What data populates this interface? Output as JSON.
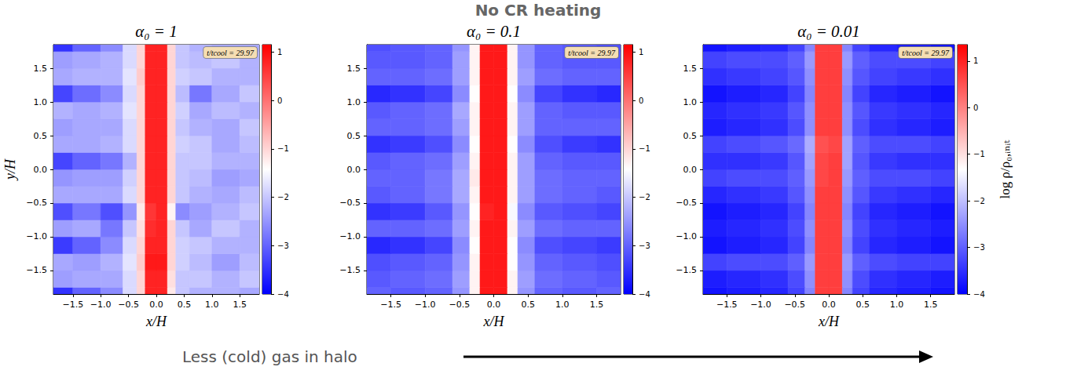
{
  "title": "No CR heating",
  "caption": "Less (cold) gas in halo",
  "chart_data": [
    {
      "type": "heatmap",
      "title": "α₀ = 1",
      "xlabel": "x/H",
      "ylabel": "y/H",
      "annotations": [
        "t/tcool = 29.97"
      ],
      "xlim": [
        -1.85,
        1.85
      ],
      "ylim": [
        -1.85,
        1.85
      ],
      "xticks": [
        {
          "value": -1.5,
          "label": "−1.5"
        },
        {
          "value": -1.0,
          "label": "−1.0"
        },
        {
          "value": -0.5,
          "label": "−0.5"
        },
        {
          "value": 0,
          "label": "0.0"
        },
        0.5,
        {
          "value": 1,
          "label": "1.0"
        },
        1.5
      ],
      "yticks": [
        {
          "value": -1.5,
          "label": "−1.5"
        },
        {
          "value": -1.0,
          "label": "−1.0"
        },
        {
          "value": -0.5,
          "label": "−0.5"
        },
        {
          "value": 0,
          "label": "0.0"
        },
        0.5,
        {
          "value": 1,
          "label": "1.0"
        },
        1.5
      ],
      "colors": [
        "#0000ff",
        "#ffffff",
        "#ff0000"
      ],
      "colorbar": {
        "lim": [
          -4,
          1.15
        ],
        "ticks": [
          {
            "value": -4,
            "label": "−4"
          },
          {
            "value": -3,
            "label": "−3"
          },
          {
            "value": -2,
            "label": "−2"
          },
          {
            "value": -1,
            "label": "−1"
          },
          0,
          1
        ]
      },
      "x_edges": [
        -2,
        -1.5,
        -1.0,
        -0.6,
        -0.35,
        -0.2,
        0,
        0.2,
        0.35,
        0.6,
        1.0,
        1.5,
        2
      ],
      "y_edges": [
        -2,
        -1.75,
        -1.5,
        -1.25,
        -1,
        -0.75,
        -0.5,
        -0.25,
        0,
        0.25,
        0.5,
        0.75,
        1,
        1.25,
        1.5,
        1.75,
        2
      ],
      "z": [
        [
          -3.5,
          -3.0,
          -2.6,
          -1.8,
          -1.0,
          0.8,
          0.8,
          -1.2,
          -2.0,
          -2.2,
          -2.2,
          -2.3
        ],
        [
          -2.4,
          -2.3,
          -2.3,
          -1.8,
          -1.0,
          0.8,
          0.8,
          -1.1,
          -2.0,
          -2.0,
          -2.2,
          -2.0
        ],
        [
          -2.3,
          -2.4,
          -2.2,
          -1.7,
          -0.9,
          0.9,
          0.9,
          -1.0,
          -1.9,
          -2.1,
          -2.4,
          -2.1
        ],
        [
          -3.4,
          -3.0,
          -2.6,
          -1.8,
          -1.0,
          0.8,
          0.8,
          -1.0,
          -1.9,
          -2.0,
          -2.2,
          -2.2
        ],
        [
          -2.4,
          -2.3,
          -2.8,
          -2.0,
          -1.1,
          0.7,
          0.8,
          -1.0,
          -2.0,
          -2.3,
          -2.0,
          -2.2
        ],
        [
          -3.2,
          -2.8,
          -3.2,
          -2.5,
          -1.2,
          0.6,
          0.8,
          -1.3,
          -2.6,
          -2.4,
          -2.2,
          -2.0
        ],
        [
          -2.3,
          -2.3,
          -2.3,
          -1.8,
          -1.0,
          0.8,
          0.8,
          -1.0,
          -2.0,
          -2.2,
          -2.3,
          -2.1
        ],
        [
          -2.5,
          -2.4,
          -2.4,
          -1.9,
          -1.0,
          0.8,
          0.8,
          -1.0,
          -2.0,
          -2.1,
          -2.4,
          -2.3
        ],
        [
          -3.3,
          -3.0,
          -2.8,
          -2.2,
          -1.0,
          0.8,
          0.8,
          -1.0,
          -2.0,
          -2.0,
          -2.2,
          -2.2
        ],
        [
          -2.3,
          -2.3,
          -2.2,
          -1.8,
          -1.0,
          0.8,
          0.8,
          -1.0,
          -1.9,
          -2.0,
          -2.3,
          -2.1
        ],
        [
          -2.4,
          -2.3,
          -2.3,
          -1.8,
          -1.0,
          0.8,
          0.8,
          -1.0,
          -2.0,
          -2.2,
          -2.3,
          -2.0
        ],
        [
          -2.2,
          -2.3,
          -2.2,
          -1.7,
          -1.0,
          0.8,
          0.8,
          -1.0,
          -1.9,
          -2.3,
          -2.1,
          -2.2
        ],
        [
          -3.3,
          -2.9,
          -2.6,
          -1.8,
          -1.0,
          0.8,
          0.8,
          -1.0,
          -2.1,
          -2.8,
          -2.3,
          -2.0
        ],
        [
          -2.3,
          -2.2,
          -2.2,
          -1.7,
          -0.9,
          0.8,
          0.8,
          -1.0,
          -1.9,
          -2.0,
          -2.2,
          -2.2
        ],
        [
          -2.4,
          -2.3,
          -2.2,
          -1.8,
          -1.0,
          0.8,
          0.8,
          -1.0,
          -2.0,
          -2.1,
          -2.0,
          -2.2
        ],
        [
          -3.5,
          -3.0,
          -2.6,
          -1.8,
          -1.0,
          0.8,
          0.8,
          -1.0,
          -2.0,
          -2.2,
          -2.3,
          -2.3
        ]
      ]
    },
    {
      "type": "heatmap",
      "title": "α₀ = 0.1",
      "xlabel": "x/H",
      "annotations": [
        "t/tcool = 29.97"
      ],
      "xlim": [
        -1.85,
        1.85
      ],
      "ylim": [
        -1.85,
        1.85
      ],
      "xticks": [
        {
          "value": -1.5,
          "label": "−1.5"
        },
        {
          "value": -1.0,
          "label": "−1.0"
        },
        {
          "value": -0.5,
          "label": "−0.5"
        },
        {
          "value": 0,
          "label": "0.0"
        },
        0.5,
        {
          "value": 1,
          "label": "1.0"
        },
        1.5
      ],
      "yticks": [
        {
          "value": -1.5,
          "label": "−1.5"
        },
        {
          "value": -1.0,
          "label": "−1.0"
        },
        {
          "value": -0.5,
          "label": "−0.5"
        },
        {
          "value": 0,
          "label": "0.0"
        },
        0.5,
        {
          "value": 1,
          "label": "1.0"
        },
        1.5
      ],
      "colors": [
        "#0000ff",
        "#ffffff",
        "#ff0000"
      ],
      "colorbar": {
        "lim": [
          -4,
          1.15
        ],
        "ticks": [
          {
            "value": -4,
            "label": "−4"
          },
          {
            "value": -3,
            "label": "−3"
          },
          {
            "value": -2,
            "label": "−2"
          },
          {
            "value": -1,
            "label": "−1"
          },
          0,
          1
        ]
      },
      "x_edges": [
        -2,
        -1.5,
        -1.0,
        -0.6,
        -0.35,
        -0.2,
        0,
        0.2,
        0.35,
        0.6,
        1.0,
        1.5,
        2
      ],
      "y_edges": [
        -2,
        -1.75,
        -1.5,
        -1.25,
        -1,
        -0.75,
        -0.5,
        -0.25,
        0,
        0.25,
        0.5,
        0.75,
        1,
        1.25,
        1.5,
        1.75,
        2
      ],
      "z": [
        [
          -3.0,
          -3.1,
          -3.0,
          -2.5,
          -1.3,
          0.9,
          0.9,
          -1.3,
          -2.5,
          -3.0,
          -3.1,
          -3.0
        ],
        [
          -3.1,
          -3.0,
          -2.9,
          -2.4,
          -1.3,
          0.9,
          0.9,
          -1.3,
          -2.4,
          -2.9,
          -3.0,
          -3.1
        ],
        [
          -3.2,
          -3.1,
          -3.0,
          -2.5,
          -1.3,
          0.9,
          0.9,
          -1.4,
          -2.5,
          -3.0,
          -3.1,
          -3.2
        ],
        [
          -3.6,
          -3.5,
          -3.3,
          -2.6,
          -1.4,
          0.9,
          0.9,
          -1.4,
          -2.6,
          -3.2,
          -3.3,
          -3.4
        ],
        [
          -3.0,
          -3.0,
          -2.9,
          -2.4,
          -1.3,
          0.9,
          0.9,
          -1.3,
          -2.4,
          -2.9,
          -3.0,
          -3.0
        ],
        [
          -3.5,
          -3.4,
          -3.1,
          -2.5,
          -1.4,
          0.8,
          0.9,
          -1.5,
          -2.6,
          -3.1,
          -3.2,
          -3.3
        ],
        [
          -3.1,
          -3.0,
          -2.8,
          -2.3,
          -1.3,
          0.9,
          0.9,
          -1.3,
          -2.4,
          -2.9,
          -3.0,
          -3.1
        ],
        [
          -3.0,
          -3.0,
          -2.8,
          -2.3,
          -1.2,
          0.9,
          0.9,
          -1.3,
          -2.4,
          -2.9,
          -3.0,
          -3.0
        ],
        [
          -3.1,
          -3.0,
          -2.9,
          -2.4,
          -1.3,
          0.9,
          0.9,
          -1.3,
          -2.4,
          -3.0,
          -3.1,
          -3.1
        ],
        [
          -3.5,
          -3.4,
          -3.2,
          -2.6,
          -1.4,
          0.9,
          0.9,
          -1.4,
          -2.6,
          -3.2,
          -3.4,
          -3.5
        ],
        [
          -3.0,
          -3.0,
          -2.9,
          -2.4,
          -1.3,
          0.9,
          0.9,
          -1.3,
          -2.4,
          -3.0,
          -3.0,
          -3.0
        ],
        [
          -3.1,
          -3.0,
          -2.9,
          -2.3,
          -1.3,
          0.9,
          0.9,
          -1.3,
          -2.4,
          -3.0,
          -3.1,
          -3.1
        ],
        [
          -3.6,
          -3.5,
          -3.3,
          -2.6,
          -1.4,
          0.9,
          0.9,
          -1.4,
          -2.6,
          -3.3,
          -3.5,
          -3.6
        ],
        [
          -3.0,
          -3.0,
          -2.9,
          -2.4,
          -1.3,
          0.9,
          0.9,
          -1.3,
          -2.4,
          -2.9,
          -3.0,
          -3.0
        ],
        [
          -3.1,
          -3.1,
          -3.0,
          -2.4,
          -1.3,
          0.9,
          0.9,
          -1.3,
          -2.5,
          -3.0,
          -3.1,
          -3.1
        ],
        [
          -3.2,
          -3.1,
          -3.0,
          -2.5,
          -1.3,
          0.9,
          0.9,
          -1.3,
          -2.5,
          -3.0,
          -3.1,
          -3.2
        ]
      ]
    },
    {
      "type": "heatmap",
      "title": "α₀ = 0.01",
      "xlabel": "x/H",
      "annotations": [
        "t/tcool = 29.97"
      ],
      "xlim": [
        -1.85,
        1.85
      ],
      "ylim": [
        -1.85,
        1.85
      ],
      "xticks": [
        {
          "value": -1.5,
          "label": "−1.5"
        },
        {
          "value": -1.0,
          "label": "−1.0"
        },
        {
          "value": -0.5,
          "label": "−0.5"
        },
        {
          "value": 0,
          "label": "0.0"
        },
        0.5,
        {
          "value": 1,
          "label": "1.0"
        },
        1.5
      ],
      "yticks": [
        {
          "value": -1.5,
          "label": "−1.5"
        },
        {
          "value": -1.0,
          "label": "−1.0"
        },
        {
          "value": -0.5,
          "label": "−0.5"
        },
        {
          "value": 0,
          "label": "0.0"
        },
        0.5,
        {
          "value": 1,
          "label": "1.0"
        },
        1.5
      ],
      "colors": [
        "#0000ff",
        "#ffffff",
        "#ff0000"
      ],
      "colorbar": {
        "label": "log ρ/ρ₀,ᵢₙᵢₜ",
        "lim": [
          -4,
          1.35
        ],
        "ticks": [
          {
            "value": -4,
            "label": "−4"
          },
          {
            "value": -3,
            "label": "−3"
          },
          {
            "value": -2,
            "label": "−2"
          },
          {
            "value": -1,
            "label": "−1"
          },
          0,
          1
        ]
      },
      "x_edges": [
        -2,
        -1.5,
        -1.0,
        -0.6,
        -0.35,
        -0.2,
        0,
        0.2,
        0.35,
        0.6,
        1.0,
        1.5,
        2
      ],
      "y_edges": [
        -2,
        -1.75,
        -1.5,
        -1.25,
        -1,
        -0.75,
        -0.5,
        -0.25,
        0,
        0.25,
        0.5,
        0.75,
        1,
        1.25,
        1.5,
        1.75,
        2
      ],
      "z": [
        [
          -3.8,
          -3.7,
          -3.6,
          -3.3,
          -2.6,
          0.7,
          0.7,
          -2.6,
          -3.3,
          -3.6,
          -3.7,
          -3.8
        ],
        [
          -3.7,
          -3.6,
          -3.5,
          -3.2,
          -2.5,
          0.7,
          0.7,
          -2.5,
          -3.2,
          -3.5,
          -3.6,
          -3.7
        ],
        [
          -3.3,
          -3.2,
          -3.2,
          -3.0,
          -2.4,
          0.7,
          0.7,
          -2.4,
          -3.0,
          -3.2,
          -3.3,
          -3.3
        ],
        [
          -3.8,
          -3.7,
          -3.6,
          -3.3,
          -2.6,
          0.7,
          0.7,
          -2.6,
          -3.3,
          -3.6,
          -3.7,
          -3.8
        ],
        [
          -3.7,
          -3.6,
          -3.5,
          -3.2,
          -2.5,
          0.7,
          0.7,
          -2.5,
          -3.2,
          -3.5,
          -3.6,
          -3.7
        ],
        [
          -3.8,
          -3.7,
          -3.6,
          -3.3,
          -2.6,
          0.7,
          0.7,
          -2.6,
          -3.3,
          -3.6,
          -3.7,
          -3.8
        ],
        [
          -3.6,
          -3.5,
          -3.4,
          -3.1,
          -2.5,
          0.7,
          0.7,
          -2.5,
          -3.1,
          -3.4,
          -3.5,
          -3.6
        ],
        [
          -3.3,
          -3.2,
          -3.2,
          -3.0,
          -2.4,
          0.6,
          0.7,
          -2.4,
          -3.0,
          -3.2,
          -3.2,
          -3.3
        ],
        [
          -3.5,
          -3.5,
          -3.4,
          -3.1,
          -2.3,
          0.6,
          0.7,
          -2.3,
          -3.1,
          -3.4,
          -3.5,
          -3.5
        ],
        [
          -3.3,
          -3.2,
          -3.1,
          -2.9,
          -2.2,
          0.5,
          0.6,
          -2.3,
          -3.0,
          -3.2,
          -3.2,
          -3.3
        ],
        [
          -3.7,
          -3.6,
          -3.5,
          -3.2,
          -2.5,
          0.7,
          0.7,
          -2.5,
          -3.2,
          -3.5,
          -3.6,
          -3.7
        ],
        [
          -3.6,
          -3.5,
          -3.4,
          -3.1,
          -2.5,
          0.7,
          0.7,
          -2.5,
          -3.1,
          -3.4,
          -3.5,
          -3.6
        ],
        [
          -3.8,
          -3.7,
          -3.6,
          -3.3,
          -2.6,
          0.7,
          0.7,
          -2.6,
          -3.3,
          -3.6,
          -3.7,
          -3.8
        ],
        [
          -3.5,
          -3.4,
          -3.3,
          -3.1,
          -2.5,
          0.7,
          0.7,
          -2.5,
          -3.1,
          -3.3,
          -3.4,
          -3.5
        ],
        [
          -3.3,
          -3.2,
          -3.2,
          -3.0,
          -2.4,
          0.7,
          0.7,
          -2.4,
          -3.0,
          -3.2,
          -3.2,
          -3.3
        ],
        [
          -3.8,
          -3.7,
          -3.6,
          -3.3,
          -2.6,
          0.7,
          0.7,
          -2.6,
          -3.3,
          -3.6,
          -3.7,
          -3.8
        ]
      ]
    }
  ]
}
